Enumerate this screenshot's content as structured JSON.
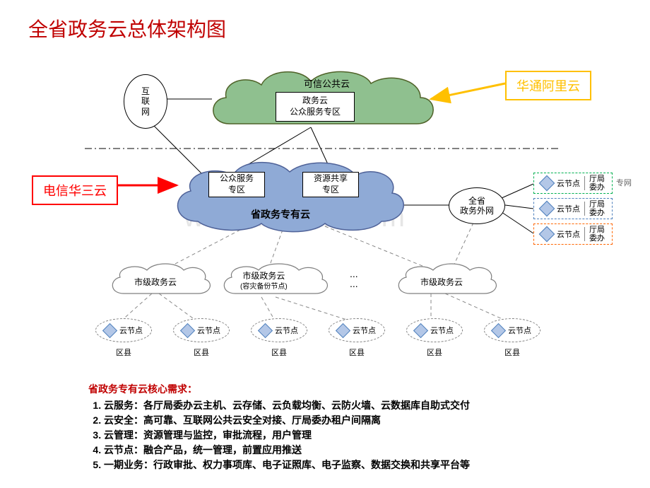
{
  "title": "全省政务云总体架构图",
  "watermark": "www.bdocx.com",
  "callouts": {
    "right": {
      "text": "华通阿里云",
      "border": "#ffc000",
      "color": "#ffc000"
    },
    "left": {
      "text": "电信华三云",
      "border": "#ff0000",
      "color": "#ff0000"
    }
  },
  "clouds": {
    "public": {
      "label": "可信公共云",
      "fill": "#8fc08f",
      "stroke": "#4f6228",
      "box": "政务云\n公众服务专区"
    },
    "private": {
      "label": "省政务专有云",
      "fill": "#8faad6",
      "stroke": "#4f6298",
      "box_left": "公众服务\n专区",
      "box_right": "资源共享\n专区"
    },
    "city_l": {
      "label": "市级政务云",
      "stroke": "#7f7f7f"
    },
    "city_m": {
      "label": "市级政务云\n(容灾备份节点)",
      "stroke": "#7f7f7f"
    },
    "city_r": {
      "label": "市级政务云",
      "stroke": "#7f7f7f"
    }
  },
  "ellipses": {
    "internet": "互\n联\n网",
    "extranet": "全省\n政务外网"
  },
  "bureau": {
    "node": "云节点",
    "dept": "厅局\n委办",
    "priv_net": "专网",
    "colors": [
      "#00b050",
      "#4f81bd",
      "#ff6600"
    ]
  },
  "bottom": {
    "node": "云节点",
    "county": "区县",
    "diamond_fill": "#b3c7e7",
    "diamond_stroke": "#4f81bd"
  },
  "ellipsis": "...\n...",
  "requirements": {
    "heading": "省政务专有云核心需求：",
    "items": [
      "云服务：各厅局委办云主机、云存储、云负载均衡、云防火墙、云数据库自助式交付",
      "云安全：高可靠、互联网公共云安全对接、厅局委办租户间隔离",
      "云管理：资源管理与监控，审批流程，用户管理",
      "云节点：融合产品，统一管理，前置应用推送",
      "一期业务：行政审批、权力事项库、电子证照库、电子监察、数据交换和共享平台等"
    ]
  },
  "style": {
    "dash_border": "#7f7f7f",
    "arrow_red": "#ff0000",
    "arrow_yellow": "#ffc000"
  }
}
